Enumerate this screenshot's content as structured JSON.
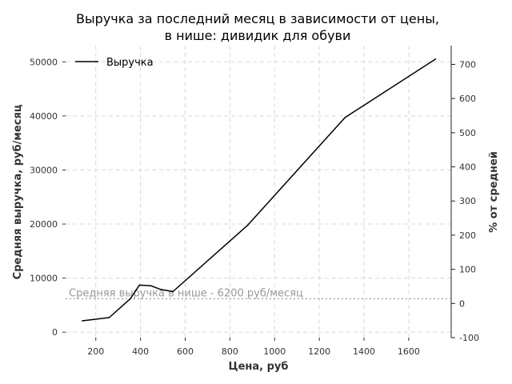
{
  "chart_data": {
    "type": "line",
    "title_line1": "Выручка за последний месяц в зависимости от цены,",
    "title_line2": "в нише: дивидик для обуви",
    "xlabel": "Цена, руб",
    "ylabel": "Средняя выручка, руб/месяц",
    "y2label": "% от средней",
    "xlim": [
      65,
      1790
    ],
    "ylim": [
      -1000,
      53000
    ],
    "y2lim": [
      -100,
      755
    ],
    "xticks": [
      200,
      400,
      600,
      800,
      1000,
      1200,
      1400,
      1600
    ],
    "yticks": [
      0,
      10000,
      20000,
      30000,
      40000,
      50000
    ],
    "y2ticks": [
      -100,
      0,
      100,
      200,
      300,
      400,
      500,
      600,
      700
    ],
    "grid": true,
    "legend_position": "upper-left",
    "series": [
      {
        "name": "Выручка",
        "color": "#000000",
        "x": [
          140,
          260,
          355,
          395,
          445,
          490,
          545,
          880,
          1315,
          1720
        ],
        "y": [
          2100,
          2700,
          6200,
          8700,
          8600,
          7900,
          7500,
          19800,
          39700,
          50500
        ]
      }
    ],
    "reference_line": {
      "value": 6200,
      "label": "Средняя выручка в нише - 6200 руб/месяц",
      "color": "#aaaaaa"
    }
  }
}
